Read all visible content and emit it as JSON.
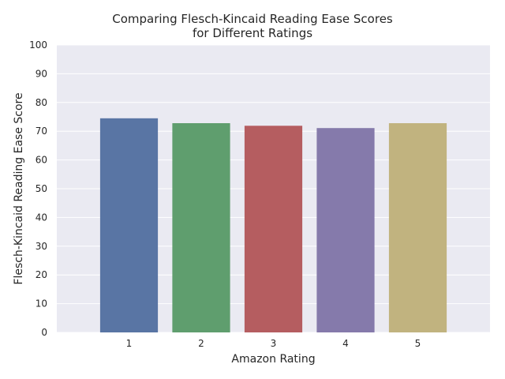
{
  "chart_data": {
    "type": "bar",
    "title_lines": [
      "Comparing Flesch-Kincaid Reading Ease Scores",
      "for Different Ratings"
    ],
    "xlabel": "Amazon Rating",
    "ylabel": "Flesch-Kincaid Reading Ease Score",
    "categories": [
      "1",
      "2",
      "3",
      "4",
      "5"
    ],
    "values": [
      74.5,
      72.8,
      71.9,
      71.1,
      72.8
    ],
    "ylim": [
      0,
      100
    ],
    "yticks": [
      "0",
      "10",
      "20",
      "30",
      "40",
      "50",
      "60",
      "70",
      "80",
      "90",
      "100"
    ],
    "grid": true,
    "colors": [
      "#5975a4",
      "#5f9e6e",
      "#b55d60",
      "#857aab",
      "#c1b37f"
    ],
    "background": "#eaeaf2"
  }
}
